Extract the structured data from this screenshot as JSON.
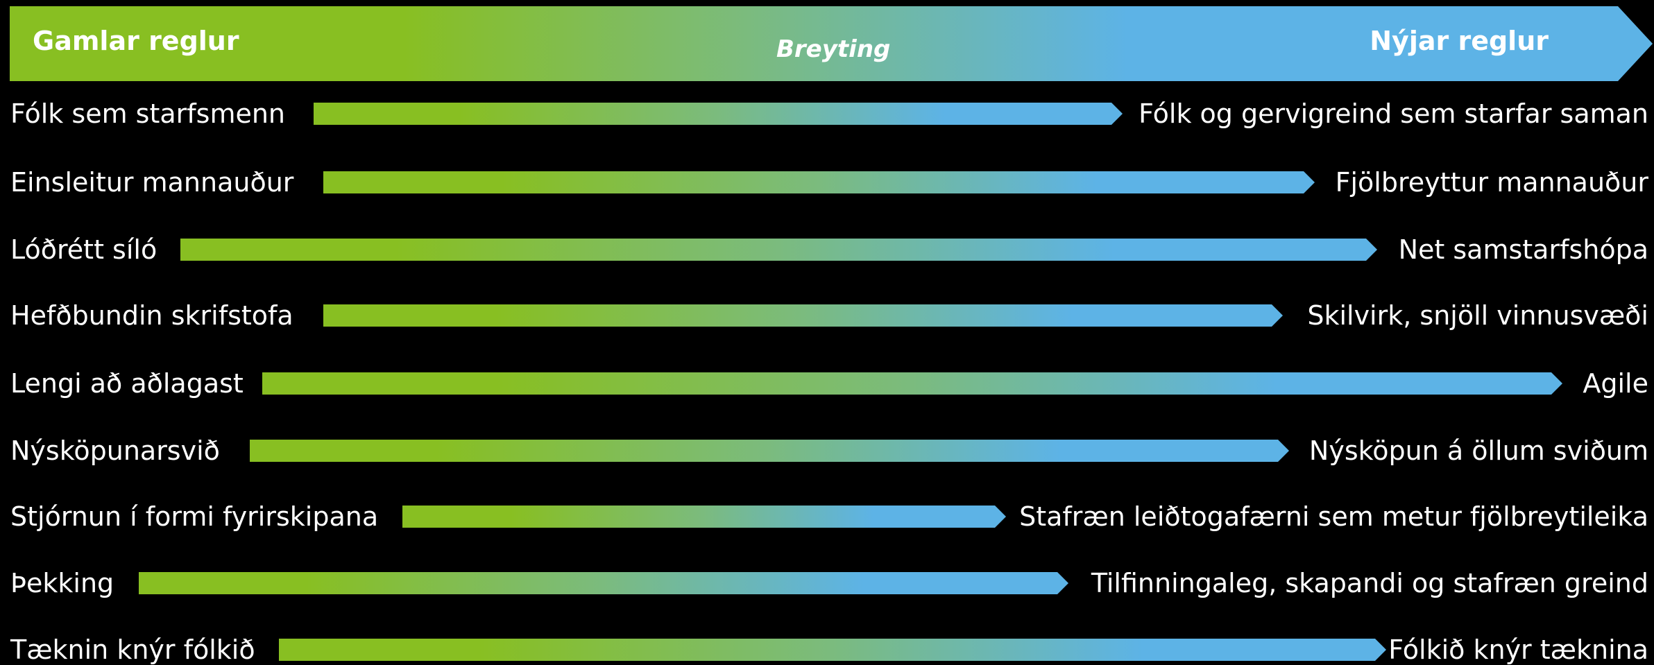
{
  "header": {
    "left_title": "Gamlar reglur",
    "center_title": "Breyting",
    "right_title": "Nýjar reglur",
    "gradient_start": "#88BF22",
    "gradient_end": "#5DB3E6"
  },
  "rows": [
    {
      "old": "Fólk sem starfsmenn",
      "new": "Fólk og gervigreind sem starfar saman"
    },
    {
      "old": "Einsleitur mannauður",
      "new": "Fjölbreyttur mannauður"
    },
    {
      "old": "Lóðrétt síló",
      "new": "Net samstarfshópa"
    },
    {
      "old": "Hefðbundin skrifstofa",
      "new": "Skilvirk, snjöll vinnusvæði"
    },
    {
      "old": "Lengi að aðlagast",
      "new": "Agile"
    },
    {
      "old": "Nýsköpunarsvið",
      "new": "Nýsköpun á öllum sviðum"
    },
    {
      "old": "Stjórnun í formi fyrirskipana",
      "new": "Stafræn leiðtogafærni sem metur fjölbreytileika"
    },
    {
      "old": "Þekking",
      "new": "Tilfinningaleg, skapandi og stafræn greind"
    },
    {
      "old": "Tæknin knýr fólkið",
      "new": "Fólkið knýr tæknina"
    }
  ]
}
